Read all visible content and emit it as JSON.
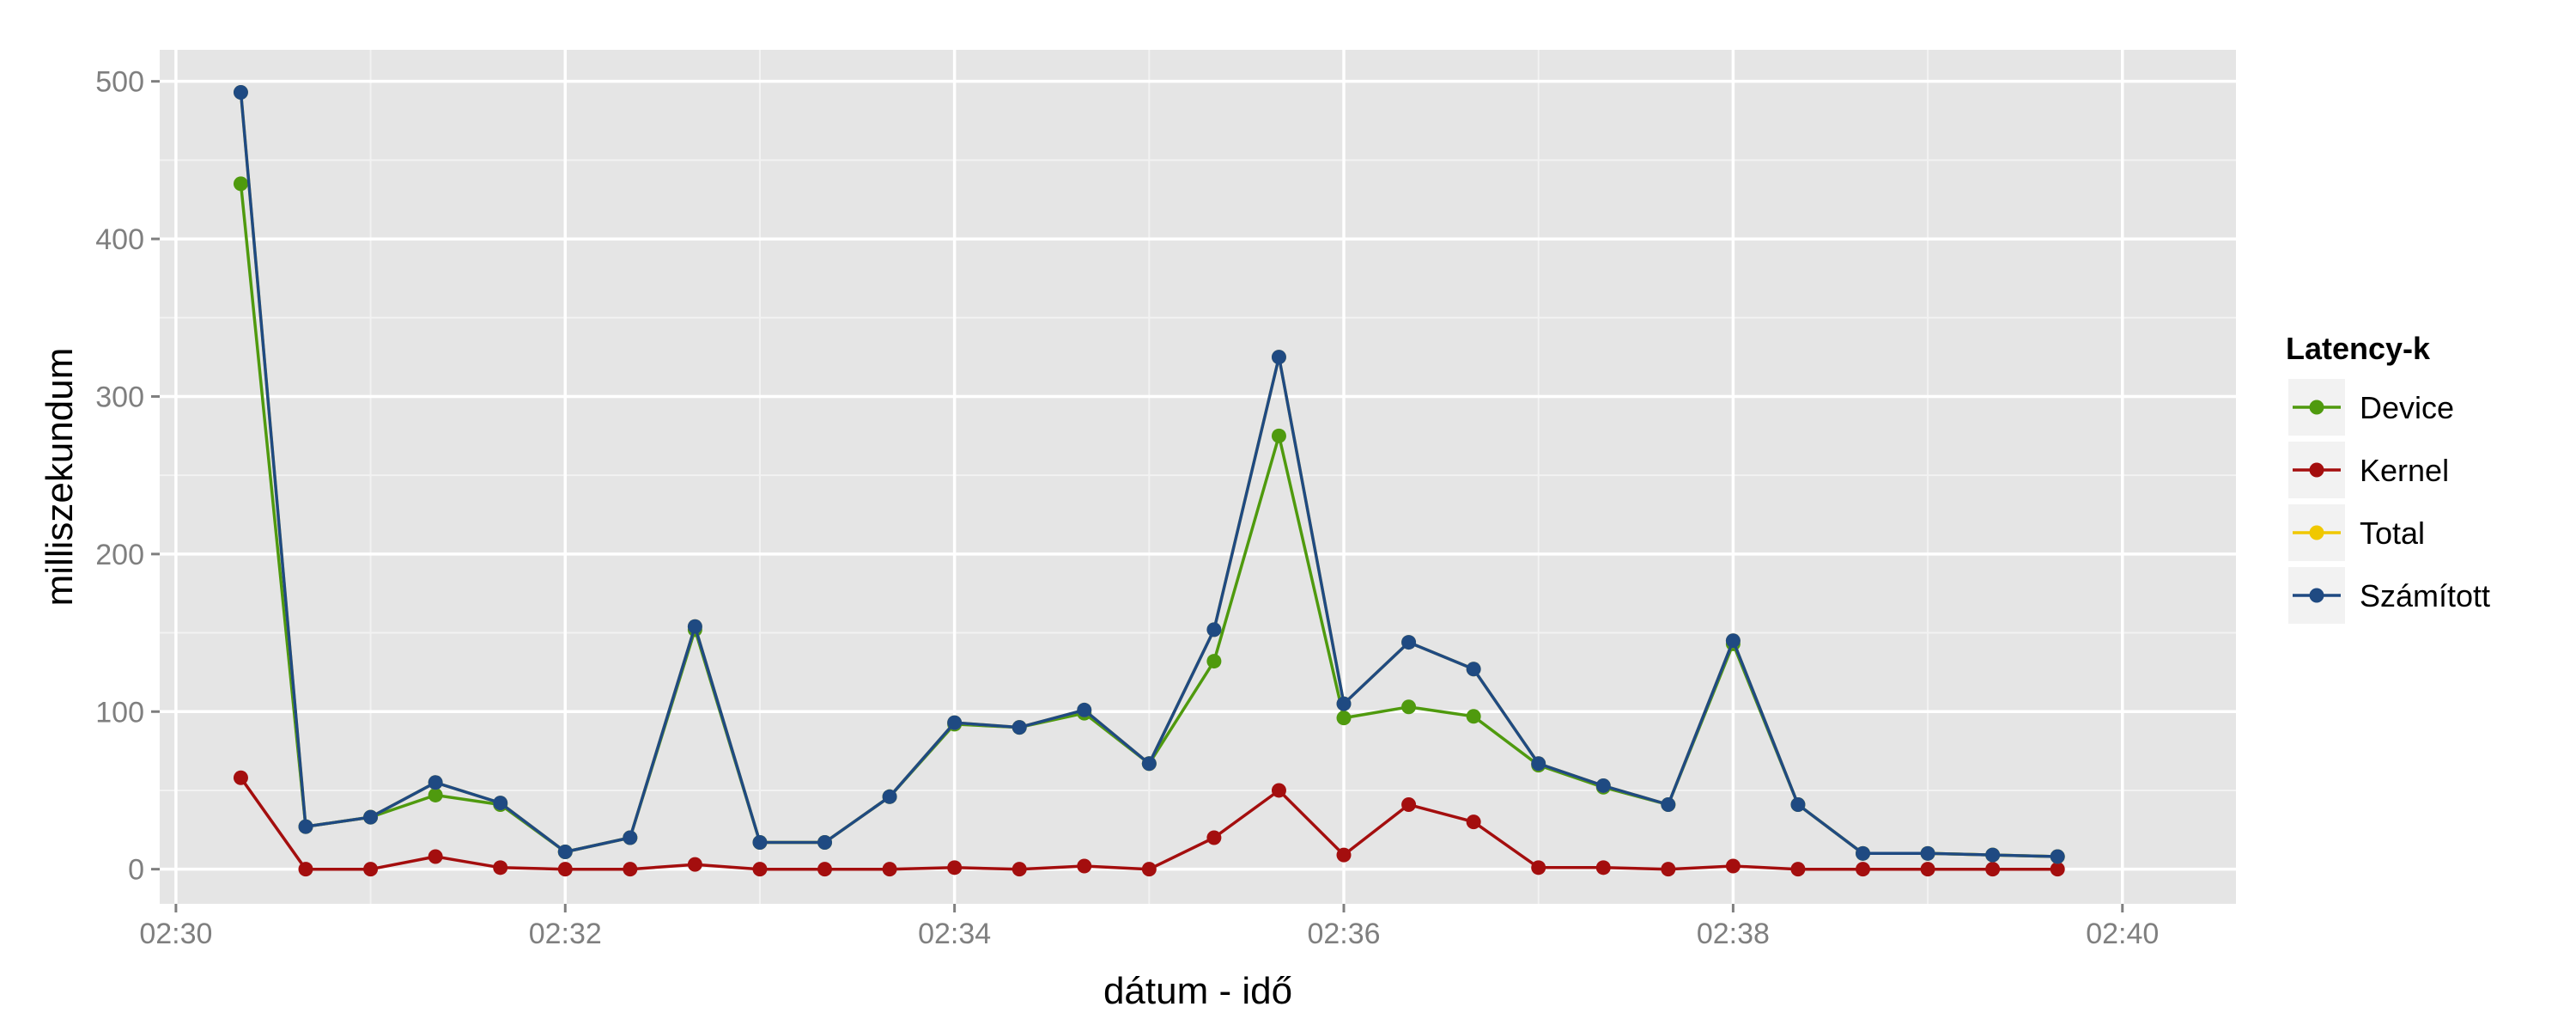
{
  "chart_data": {
    "type": "line",
    "xlabel": "dátum - idő",
    "ylabel": "milliszekundum",
    "x_ticks": [
      "02:30",
      "02:32",
      "02:34",
      "02:36",
      "02:38",
      "02:40"
    ],
    "y_ticks": [
      "0",
      "100",
      "200",
      "300",
      "400",
      "500"
    ],
    "xlim": [
      "02:29:55",
      "02:40:35"
    ],
    "ylim": [
      -22,
      520
    ],
    "grid": true,
    "panel_background": "#e5e5e5",
    "legend": {
      "title": "Latency-k",
      "position": "right",
      "entries": [
        "Device",
        "Kernel",
        "Total",
        "Számított"
      ]
    },
    "x": [
      "02:30:20",
      "02:30:40",
      "02:31:00",
      "02:31:20",
      "02:31:40",
      "02:32:00",
      "02:32:20",
      "02:32:40",
      "02:33:00",
      "02:33:20",
      "02:33:40",
      "02:34:00",
      "02:34:20",
      "02:34:40",
      "02:35:00",
      "02:35:20",
      "02:35:40",
      "02:36:00",
      "02:36:20",
      "02:36:40",
      "02:37:00",
      "02:37:20",
      "02:37:40",
      "02:38:00",
      "02:38:20",
      "02:38:40",
      "02:39:00",
      "02:39:20",
      "02:39:40"
    ],
    "series": [
      {
        "name": "Device",
        "color": "#4f9a0e",
        "values": [
          435,
          27,
          33,
          47,
          41,
          11,
          20,
          152,
          17,
          17,
          46,
          92,
          90,
          99,
          67,
          132,
          275,
          96,
          103,
          97,
          66,
          52,
          41,
          143,
          41,
          10,
          10,
          9,
          8
        ]
      },
      {
        "name": "Kernel",
        "color": "#a40e0e",
        "values": [
          58,
          0,
          0,
          8,
          1,
          0,
          0,
          3,
          0,
          0,
          0,
          1,
          0,
          2,
          0,
          20,
          50,
          9,
          41,
          30,
          1,
          1,
          0,
          2,
          0,
          0,
          0,
          0,
          0
        ]
      },
      {
        "name": "Total",
        "color": "#f0c800",
        "values": [
          493,
          27,
          33,
          55,
          42,
          11,
          20,
          154,
          17,
          17,
          46,
          93,
          90,
          101,
          67,
          152,
          325,
          105,
          144,
          127,
          67,
          53,
          41,
          145,
          41,
          10,
          10,
          9,
          8
        ]
      },
      {
        "name": "Számított",
        "color": "#1f4a82",
        "values": [
          493,
          27,
          33,
          55,
          42,
          11,
          20,
          154,
          17,
          17,
          46,
          93,
          90,
          101,
          67,
          152,
          325,
          105,
          144,
          127,
          67,
          53,
          41,
          145,
          41,
          10,
          10,
          9,
          8
        ]
      }
    ]
  }
}
